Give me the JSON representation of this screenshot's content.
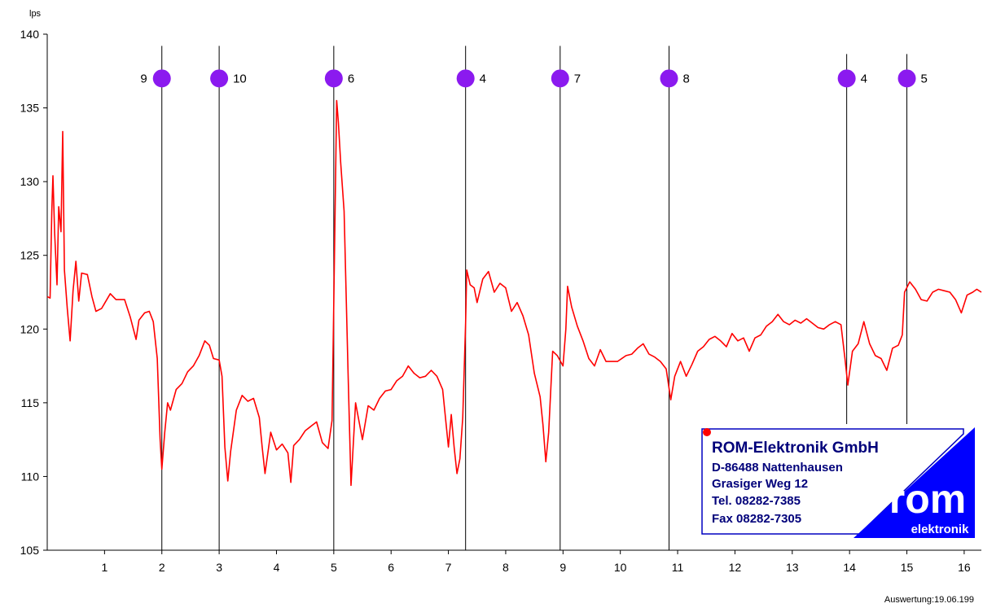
{
  "chart_data": {
    "type": "line",
    "title": "",
    "ylabel": "lps",
    "xlabel": "",
    "xlim": [
      0,
      16.3
    ],
    "ylim": [
      105,
      140
    ],
    "x_ticks": [
      1,
      2,
      3,
      4,
      5,
      6,
      7,
      8,
      9,
      10,
      11,
      12,
      13,
      14,
      15,
      16
    ],
    "y_ticks": [
      105,
      110,
      115,
      120,
      125,
      130,
      135,
      140
    ],
    "grid": false,
    "series": [
      {
        "color": "#ff0000",
        "points": [
          [
            0.0,
            122.2
          ],
          [
            0.05,
            122.1
          ],
          [
            0.08,
            128.0
          ],
          [
            0.1,
            130.4
          ],
          [
            0.13,
            126.5
          ],
          [
            0.17,
            123.0
          ],
          [
            0.2,
            128.3
          ],
          [
            0.24,
            126.6
          ],
          [
            0.27,
            133.4
          ],
          [
            0.3,
            124.0
          ],
          [
            0.35,
            121.4
          ],
          [
            0.4,
            119.2
          ],
          [
            0.45,
            122.6
          ],
          [
            0.5,
            124.6
          ],
          [
            0.55,
            121.9
          ],
          [
            0.6,
            123.8
          ],
          [
            0.7,
            123.7
          ],
          [
            0.78,
            122.2
          ],
          [
            0.85,
            121.2
          ],
          [
            0.95,
            121.4
          ],
          [
            1.1,
            122.4
          ],
          [
            1.2,
            122.0
          ],
          [
            1.35,
            122.0
          ],
          [
            1.45,
            120.8
          ],
          [
            1.55,
            119.3
          ],
          [
            1.6,
            120.6
          ],
          [
            1.7,
            121.1
          ],
          [
            1.78,
            121.2
          ],
          [
            1.85,
            120.5
          ],
          [
            1.92,
            118.0
          ],
          [
            1.97,
            112.5
          ],
          [
            2.0,
            110.5
          ],
          [
            2.05,
            113.0
          ],
          [
            2.1,
            115.0
          ],
          [
            2.15,
            114.5
          ],
          [
            2.25,
            115.9
          ],
          [
            2.35,
            116.3
          ],
          [
            2.45,
            117.1
          ],
          [
            2.55,
            117.5
          ],
          [
            2.65,
            118.2
          ],
          [
            2.75,
            119.2
          ],
          [
            2.83,
            118.9
          ],
          [
            2.9,
            118.0
          ],
          [
            3.0,
            117.9
          ],
          [
            3.05,
            116.8
          ],
          [
            3.1,
            112.0
          ],
          [
            3.15,
            109.7
          ],
          [
            3.2,
            111.7
          ],
          [
            3.3,
            114.5
          ],
          [
            3.4,
            115.5
          ],
          [
            3.5,
            115.1
          ],
          [
            3.6,
            115.3
          ],
          [
            3.7,
            114.0
          ],
          [
            3.75,
            112.0
          ],
          [
            3.8,
            110.2
          ],
          [
            3.9,
            113.0
          ],
          [
            4.0,
            111.8
          ],
          [
            4.1,
            112.2
          ],
          [
            4.2,
            111.6
          ],
          [
            4.25,
            109.6
          ],
          [
            4.3,
            112.1
          ],
          [
            4.4,
            112.5
          ],
          [
            4.5,
            113.1
          ],
          [
            4.6,
            113.4
          ],
          [
            4.7,
            113.7
          ],
          [
            4.8,
            112.3
          ],
          [
            4.9,
            111.9
          ],
          [
            4.97,
            113.8
          ],
          [
            5.0,
            121.6
          ],
          [
            5.05,
            135.5
          ],
          [
            5.08,
            134.0
          ],
          [
            5.12,
            131.3
          ],
          [
            5.18,
            128.0
          ],
          [
            5.25,
            117.0
          ],
          [
            5.3,
            109.4
          ],
          [
            5.38,
            115.0
          ],
          [
            5.5,
            112.5
          ],
          [
            5.6,
            114.8
          ],
          [
            5.7,
            114.5
          ],
          [
            5.8,
            115.3
          ],
          [
            5.9,
            115.8
          ],
          [
            6.0,
            115.9
          ],
          [
            6.1,
            116.5
          ],
          [
            6.2,
            116.8
          ],
          [
            6.3,
            117.5
          ],
          [
            6.4,
            117.0
          ],
          [
            6.5,
            116.7
          ],
          [
            6.6,
            116.8
          ],
          [
            6.7,
            117.2
          ],
          [
            6.8,
            116.8
          ],
          [
            6.9,
            115.9
          ],
          [
            7.0,
            112.0
          ],
          [
            7.05,
            114.2
          ],
          [
            7.1,
            112.0
          ],
          [
            7.15,
            110.2
          ],
          [
            7.2,
            111.2
          ],
          [
            7.25,
            114.0
          ],
          [
            7.3,
            120.4
          ],
          [
            7.32,
            124.0
          ],
          [
            7.38,
            123.0
          ],
          [
            7.45,
            122.8
          ],
          [
            7.5,
            121.8
          ],
          [
            7.6,
            123.4
          ],
          [
            7.7,
            123.9
          ],
          [
            7.8,
            122.5
          ],
          [
            7.9,
            123.1
          ],
          [
            8.0,
            122.8
          ],
          [
            8.1,
            121.2
          ],
          [
            8.2,
            121.8
          ],
          [
            8.3,
            120.9
          ],
          [
            8.4,
            119.6
          ],
          [
            8.5,
            117.0
          ],
          [
            8.6,
            115.4
          ],
          [
            8.65,
            113.5
          ],
          [
            8.7,
            111.0
          ],
          [
            8.75,
            113.0
          ],
          [
            8.82,
            118.5
          ],
          [
            8.9,
            118.2
          ],
          [
            9.0,
            117.5
          ],
          [
            9.05,
            120.0
          ],
          [
            9.08,
            122.9
          ],
          [
            9.15,
            121.5
          ],
          [
            9.25,
            120.2
          ],
          [
            9.35,
            119.2
          ],
          [
            9.45,
            118.0
          ],
          [
            9.55,
            117.5
          ],
          [
            9.65,
            118.6
          ],
          [
            9.75,
            117.8
          ],
          [
            9.85,
            117.8
          ],
          [
            9.95,
            117.8
          ],
          [
            10.1,
            118.2
          ],
          [
            10.2,
            118.3
          ],
          [
            10.3,
            118.7
          ],
          [
            10.4,
            119.0
          ],
          [
            10.5,
            118.3
          ],
          [
            10.6,
            118.1
          ],
          [
            10.7,
            117.8
          ],
          [
            10.8,
            117.3
          ],
          [
            10.88,
            115.2
          ],
          [
            10.95,
            116.8
          ],
          [
            11.05,
            117.8
          ],
          [
            11.15,
            116.8
          ],
          [
            11.25,
            117.6
          ],
          [
            11.35,
            118.5
          ],
          [
            11.45,
            118.8
          ],
          [
            11.55,
            119.3
          ],
          [
            11.65,
            119.5
          ],
          [
            11.75,
            119.2
          ],
          [
            11.85,
            118.8
          ],
          [
            11.95,
            119.7
          ],
          [
            12.05,
            119.2
          ],
          [
            12.15,
            119.4
          ],
          [
            12.25,
            118.5
          ],
          [
            12.35,
            119.4
          ],
          [
            12.45,
            119.6
          ],
          [
            12.55,
            120.2
          ],
          [
            12.65,
            120.5
          ],
          [
            12.75,
            121.0
          ],
          [
            12.85,
            120.5
          ],
          [
            12.95,
            120.3
          ],
          [
            13.05,
            120.6
          ],
          [
            13.15,
            120.4
          ],
          [
            13.25,
            120.7
          ],
          [
            13.35,
            120.4
          ],
          [
            13.45,
            120.1
          ],
          [
            13.55,
            120.0
          ],
          [
            13.65,
            120.3
          ],
          [
            13.75,
            120.5
          ],
          [
            13.85,
            120.3
          ],
          [
            13.92,
            118.0
          ],
          [
            13.97,
            116.2
          ],
          [
            14.05,
            118.5
          ],
          [
            14.15,
            119.0
          ],
          [
            14.25,
            120.5
          ],
          [
            14.35,
            119.0
          ],
          [
            14.45,
            118.2
          ],
          [
            14.55,
            118.0
          ],
          [
            14.65,
            117.2
          ],
          [
            14.75,
            118.7
          ],
          [
            14.85,
            118.9
          ],
          [
            14.92,
            119.6
          ],
          [
            14.96,
            122.5
          ],
          [
            15.05,
            123.2
          ],
          [
            15.15,
            122.7
          ],
          [
            15.25,
            122.0
          ],
          [
            15.35,
            121.9
          ],
          [
            15.45,
            122.5
          ],
          [
            15.55,
            122.7
          ],
          [
            15.65,
            122.6
          ],
          [
            15.75,
            122.5
          ],
          [
            15.85,
            122.0
          ],
          [
            15.95,
            121.1
          ],
          [
            16.05,
            122.3
          ],
          [
            16.15,
            122.5
          ],
          [
            16.22,
            122.7
          ],
          [
            16.3,
            122.5
          ]
        ]
      }
    ],
    "markers": [
      {
        "x": 2.0,
        "y": 137,
        "label": "9",
        "label_side": "left"
      },
      {
        "x": 3.0,
        "y": 137,
        "label": "10",
        "label_side": "right"
      },
      {
        "x": 5.0,
        "y": 137,
        "label": "6",
        "label_side": "right"
      },
      {
        "x": 7.3,
        "y": 137,
        "label": "4",
        "label_side": "right"
      },
      {
        "x": 8.95,
        "y": 137,
        "label": "7",
        "label_side": "right"
      },
      {
        "x": 10.85,
        "y": 137,
        "label": "8",
        "label_side": "right"
      },
      {
        "x": 13.95,
        "y": 137,
        "label": "4",
        "label_side": "right"
      },
      {
        "x": 15.0,
        "y": 137,
        "label": "5",
        "label_side": "right"
      }
    ],
    "footer": "Auswertung:19.06.199",
    "marker_color": "#8b1aef",
    "line_color": "#ff0000"
  },
  "logo": {
    "company": "ROM-Elektronik GmbH",
    "address_line1": "D-86488 Nattenhausen",
    "address_line2": "Grasiger Weg 12",
    "phone": "Tel. 08282-7385",
    "fax": "Fax 08282-7305",
    "brand": "rom",
    "brand_sub": "elektronik",
    "brand_color": "#0000ff",
    "text_color": "#00007a",
    "dot_color": "#ff0000"
  }
}
